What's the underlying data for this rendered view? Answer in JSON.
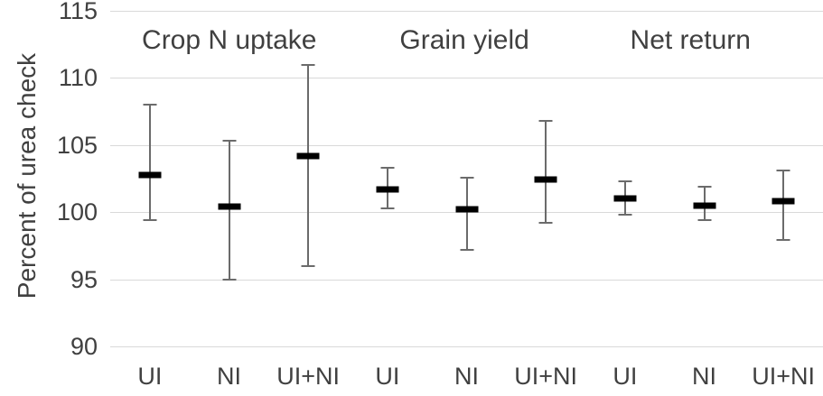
{
  "chart_data": {
    "type": "scatter",
    "subtype": "means_with_error_bars",
    "title": "",
    "xlabel": "",
    "ylabel": "Percent of urea check",
    "ylim": [
      90,
      115
    ],
    "yticks": [
      115,
      110,
      105,
      100,
      95,
      90
    ],
    "grid": true,
    "legend": false,
    "categories": [
      "UI",
      "NI",
      "UI+NI",
      "UI",
      "NI",
      "UI+NI",
      "UI",
      "NI",
      "UI+NI"
    ],
    "groups": [
      {
        "label": "Crop N uptake",
        "points": [
          {
            "x": "UI",
            "mean": 102.8,
            "lower": 99.4,
            "upper": 108.0
          },
          {
            "x": "NI",
            "mean": 100.4,
            "lower": 95.0,
            "upper": 105.3
          },
          {
            "x": "UI+NI",
            "mean": 104.2,
            "lower": 96.0,
            "upper": 111.0
          }
        ]
      },
      {
        "label": "Grain yield",
        "points": [
          {
            "x": "UI",
            "mean": 101.7,
            "lower": 100.3,
            "upper": 103.3
          },
          {
            "x": "NI",
            "mean": 100.2,
            "lower": 97.2,
            "upper": 102.6
          },
          {
            "x": "UI+NI",
            "mean": 102.4,
            "lower": 99.2,
            "upper": 106.8
          }
        ]
      },
      {
        "label": "Net return",
        "points": [
          {
            "x": "UI",
            "mean": 101.0,
            "lower": 99.8,
            "upper": 102.3
          },
          {
            "x": "NI",
            "mean": 100.5,
            "lower": 99.4,
            "upper": 101.9
          },
          {
            "x": "UI+NI",
            "mean": 100.8,
            "lower": 97.9,
            "upper": 103.1
          }
        ]
      }
    ],
    "colors": {
      "mean_marker": "#000000",
      "whisker": "#6b6b6b",
      "gridline": "#d9d9d9",
      "text": "#404040",
      "background": "#ffffff"
    }
  }
}
